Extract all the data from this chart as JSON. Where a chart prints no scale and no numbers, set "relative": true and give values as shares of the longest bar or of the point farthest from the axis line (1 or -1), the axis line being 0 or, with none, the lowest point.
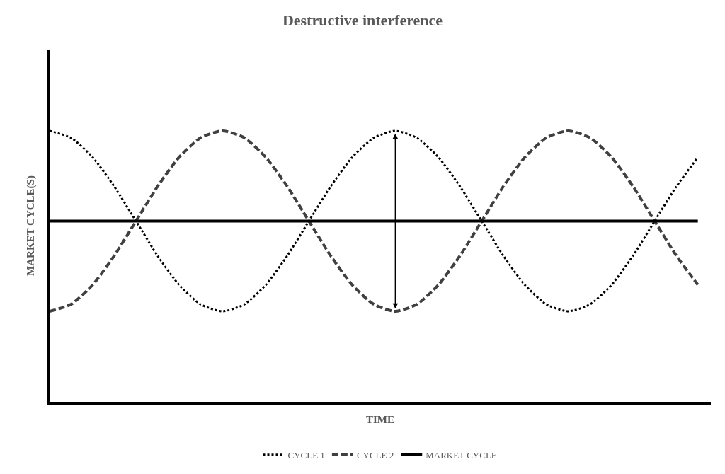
{
  "chart_data": {
    "type": "line",
    "title": "Destructive interference",
    "xlabel": "TIME",
    "ylabel": "MARKET CYCLE(S)",
    "relative": true,
    "legend": "bottom",
    "categories": [
      null,
      null,
      null,
      null,
      null,
      null,
      null,
      null,
      null,
      null,
      null,
      null,
      null,
      null,
      null,
      null,
      null,
      null,
      null,
      null,
      null,
      null,
      null,
      null,
      null,
      null,
      null,
      null,
      null,
      null,
      null
    ],
    "series": [
      {
        "name": "CYCLE 1",
        "color": "#000000",
        "line_style": "dotted",
        "values": [
          1.0,
          0.974,
          0.902,
          0.794,
          0.667,
          0.539,
          0.431,
          0.359,
          0.334,
          0.359,
          0.431,
          0.539,
          0.667,
          0.794,
          0.902,
          0.974,
          1.0,
          0.974,
          0.902,
          0.794,
          0.667,
          0.539,
          0.431,
          0.359,
          0.334,
          0.359,
          0.431,
          0.539,
          0.667,
          0.794,
          0.902
        ]
      },
      {
        "name": "CYCLE 2",
        "color": "#404040",
        "line_style": "dashed",
        "values": [
          0.334,
          0.36,
          0.432,
          0.54,
          0.667,
          0.795,
          0.903,
          0.975,
          1.0,
          0.975,
          0.903,
          0.795,
          0.667,
          0.54,
          0.432,
          0.36,
          0.334,
          0.36,
          0.432,
          0.54,
          0.667,
          0.795,
          0.903,
          0.975,
          1.0,
          0.975,
          0.903,
          0.795,
          0.667,
          0.54,
          0.432
        ]
      },
      {
        "name": "MARKET CYCLE",
        "color": "#000000",
        "line_style": "solid",
        "values": [
          0.667,
          0.667,
          0.667,
          0.667,
          0.667,
          0.667,
          0.667,
          0.667,
          0.667,
          0.667,
          0.667,
          0.667,
          0.667,
          0.667,
          0.667,
          0.667,
          0.667,
          0.667,
          0.667,
          0.667,
          0.667,
          0.667,
          0.667,
          0.667,
          0.667,
          0.667,
          0.667,
          0.667,
          0.667,
          0.667,
          0.667
        ]
      }
    ]
  }
}
